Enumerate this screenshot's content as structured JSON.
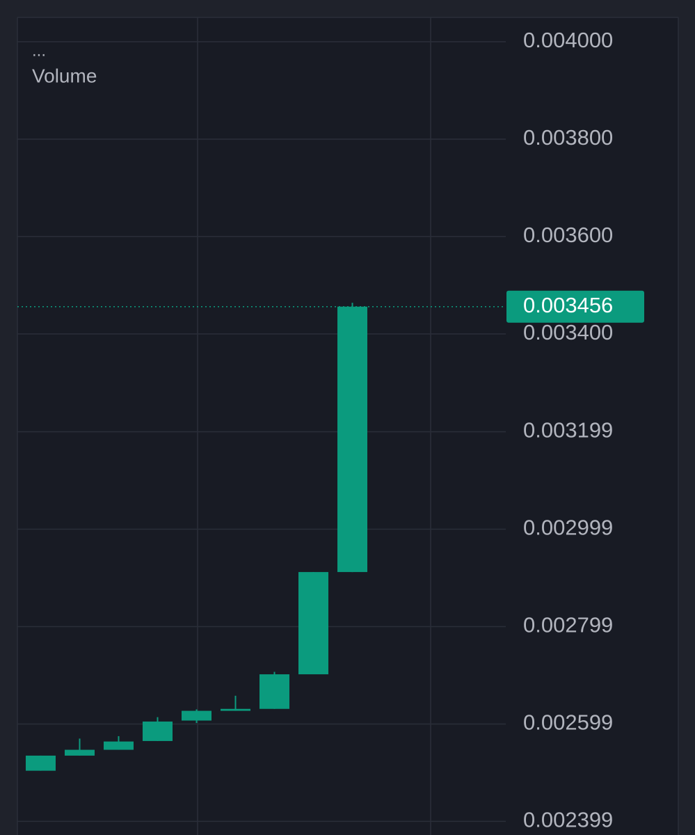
{
  "chart_data": {
    "type": "candlestick",
    "menu": "...",
    "legend_label": "Volume",
    "categories": [
      null,
      null,
      null,
      null,
      null,
      null,
      null,
      null,
      null
    ],
    "open": [
      0.002503,
      0.002534,
      0.002546,
      0.002564,
      0.002606,
      0.002626,
      0.00263,
      0.002701,
      0.002911
    ],
    "high": [
      0.002534,
      0.002569,
      0.002574,
      0.002613,
      0.002629,
      0.002657,
      0.002706,
      0.002911,
      0.003464
    ],
    "low": [
      0.002503,
      0.002534,
      0.002546,
      0.002564,
      0.002601,
      0.002626,
      0.00263,
      0.002701,
      0.002911
    ],
    "close": [
      0.002534,
      0.002546,
      0.002563,
      0.002604,
      0.002626,
      0.00263,
      0.002701,
      0.002911,
      0.003456
    ],
    "color": "#0b9b7e",
    "last_price": 0.003456,
    "ylim": [
      0.002371,
      0.00405
    ],
    "yticks": [
      {
        "value": 0.004,
        "label": "0.004000"
      },
      {
        "value": 0.0038,
        "label": "0.003800"
      },
      {
        "value": 0.0036,
        "label": "0.003600"
      },
      {
        "value": 0.0034,
        "label": "0.003400"
      },
      0.003199,
      0.002999,
      0.002799,
      0.002599,
      0.002399
    ],
    "grid": true
  }
}
